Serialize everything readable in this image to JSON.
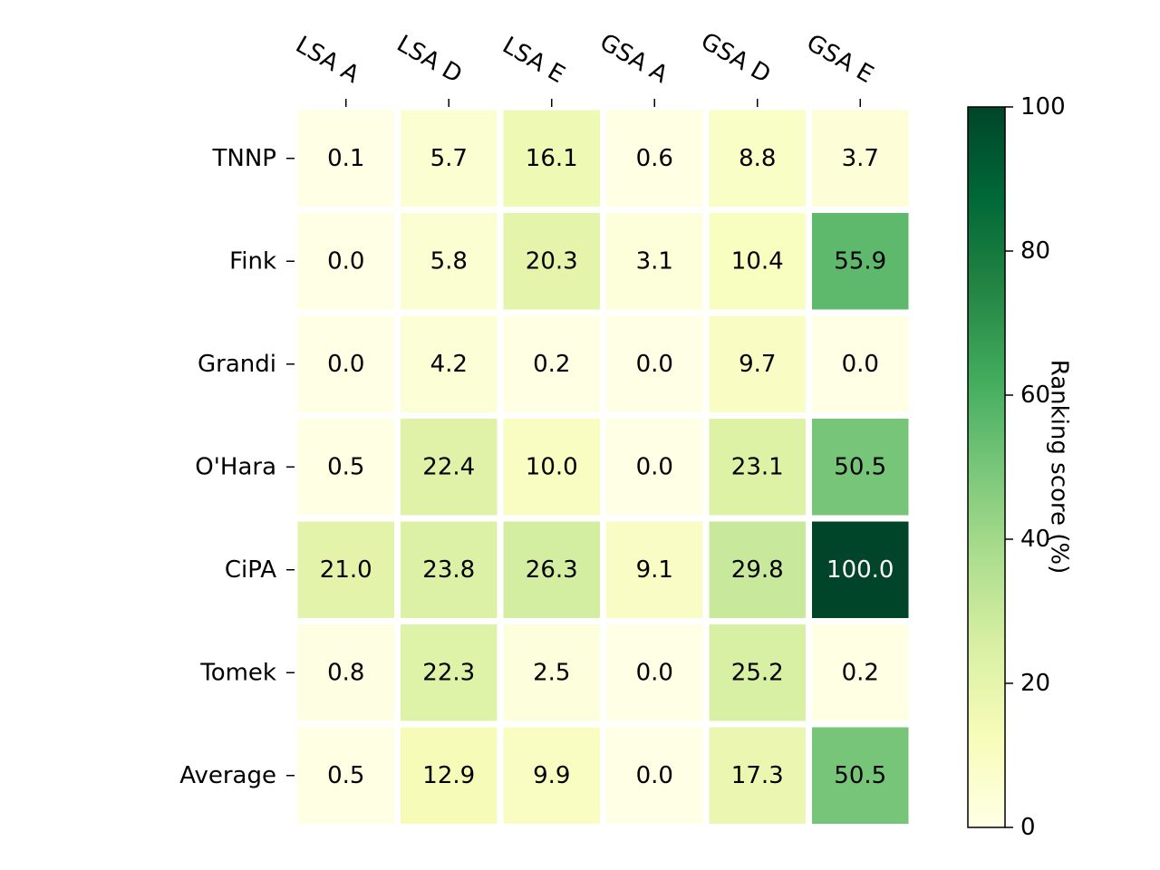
{
  "chart_data": {
    "type": "heatmap",
    "title": "",
    "columns": [
      "LSA A",
      "LSA D",
      "LSA E",
      "GSA A",
      "GSA D",
      "GSA E"
    ],
    "rows": [
      "TNNP",
      "Fink",
      "Grandi",
      "O'Hara",
      "CiPA",
      "Tomek",
      "Average"
    ],
    "values": [
      [
        0.1,
        5.7,
        16.1,
        0.6,
        8.8,
        3.7
      ],
      [
        0.0,
        5.8,
        20.3,
        3.1,
        10.4,
        55.9
      ],
      [
        0.0,
        4.2,
        0.2,
        0.0,
        9.7,
        0.0
      ],
      [
        0.5,
        22.4,
        10.0,
        0.0,
        23.1,
        50.5
      ],
      [
        21.0,
        23.8,
        26.3,
        9.1,
        29.8,
        100.0
      ],
      [
        0.8,
        22.3,
        2.5,
        0.0,
        25.2,
        0.2
      ],
      [
        0.5,
        12.9,
        9.9,
        0.0,
        17.3,
        50.5
      ]
    ],
    "value_labels": [
      [
        "0.1",
        "5.7",
        "16.1",
        "0.6",
        "8.8",
        "3.7"
      ],
      [
        "0.0",
        "5.8",
        "20.3",
        "3.1",
        "10.4",
        "55.9"
      ],
      [
        "0.0",
        "4.2",
        "0.2",
        "0.0",
        "9.7",
        "0.0"
      ],
      [
        "0.5",
        "22.4",
        "10.0",
        "0.0",
        "23.1",
        "50.5"
      ],
      [
        "21.0",
        "23.8",
        "26.3",
        "9.1",
        "29.8",
        "100.0"
      ],
      [
        "0.8",
        "22.3",
        "2.5",
        "0.0",
        "25.2",
        "0.2"
      ],
      [
        "0.5",
        "12.9",
        "9.9",
        "0.0",
        "17.3",
        "50.5"
      ]
    ],
    "colormap": "YlGn",
    "colorbar": {
      "label": "Ranking score (%)",
      "range": [
        0,
        100
      ],
      "ticks": [
        0,
        20,
        40,
        60,
        80,
        100
      ],
      "tick_labels": [
        "0",
        "20",
        "40",
        "60",
        "80",
        "100"
      ]
    },
    "x_axis_position": "top",
    "grid": false
  }
}
